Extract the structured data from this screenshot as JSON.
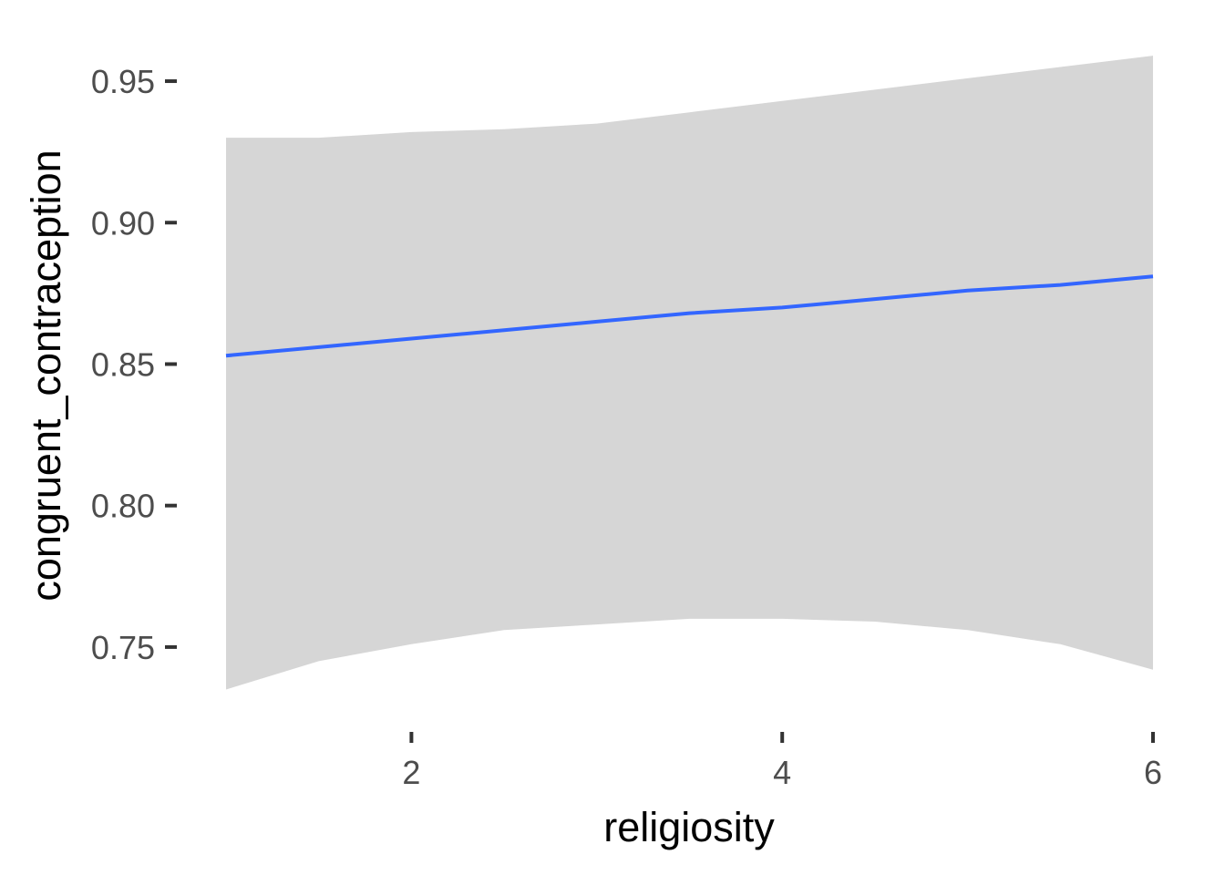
{
  "chart_data": {
    "type": "line",
    "title": "",
    "xlabel": "religiosity",
    "ylabel": "congruent_contraception",
    "xlim": [
      1,
      6
    ],
    "ylim": [
      0.73,
      0.96
    ],
    "x_ticks": [
      2,
      4,
      6
    ],
    "y_ticks": [
      0.75,
      0.8,
      0.85,
      0.9,
      0.95
    ],
    "x_tick_labels": [
      "2",
      "4",
      "6"
    ],
    "y_tick_labels": [
      "0.75",
      "0.80",
      "0.85",
      "0.90",
      "0.95"
    ],
    "grid": false,
    "legend": "none",
    "line_color": "#3366ff",
    "band_color": "#d6d6d6",
    "series": [
      {
        "x": [
          1,
          1.5,
          2,
          2.5,
          3,
          3.5,
          4,
          4.5,
          5,
          5.5,
          6
        ],
        "y": [
          0.853,
          0.856,
          0.859,
          0.862,
          0.865,
          0.868,
          0.87,
          0.873,
          0.876,
          0.878,
          0.881
        ],
        "lower": [
          0.735,
          0.745,
          0.751,
          0.756,
          0.758,
          0.76,
          0.76,
          0.759,
          0.756,
          0.751,
          0.742
        ],
        "upper": [
          0.93,
          0.93,
          0.932,
          0.933,
          0.935,
          0.939,
          0.943,
          0.947,
          0.951,
          0.955,
          0.959
        ]
      }
    ]
  }
}
